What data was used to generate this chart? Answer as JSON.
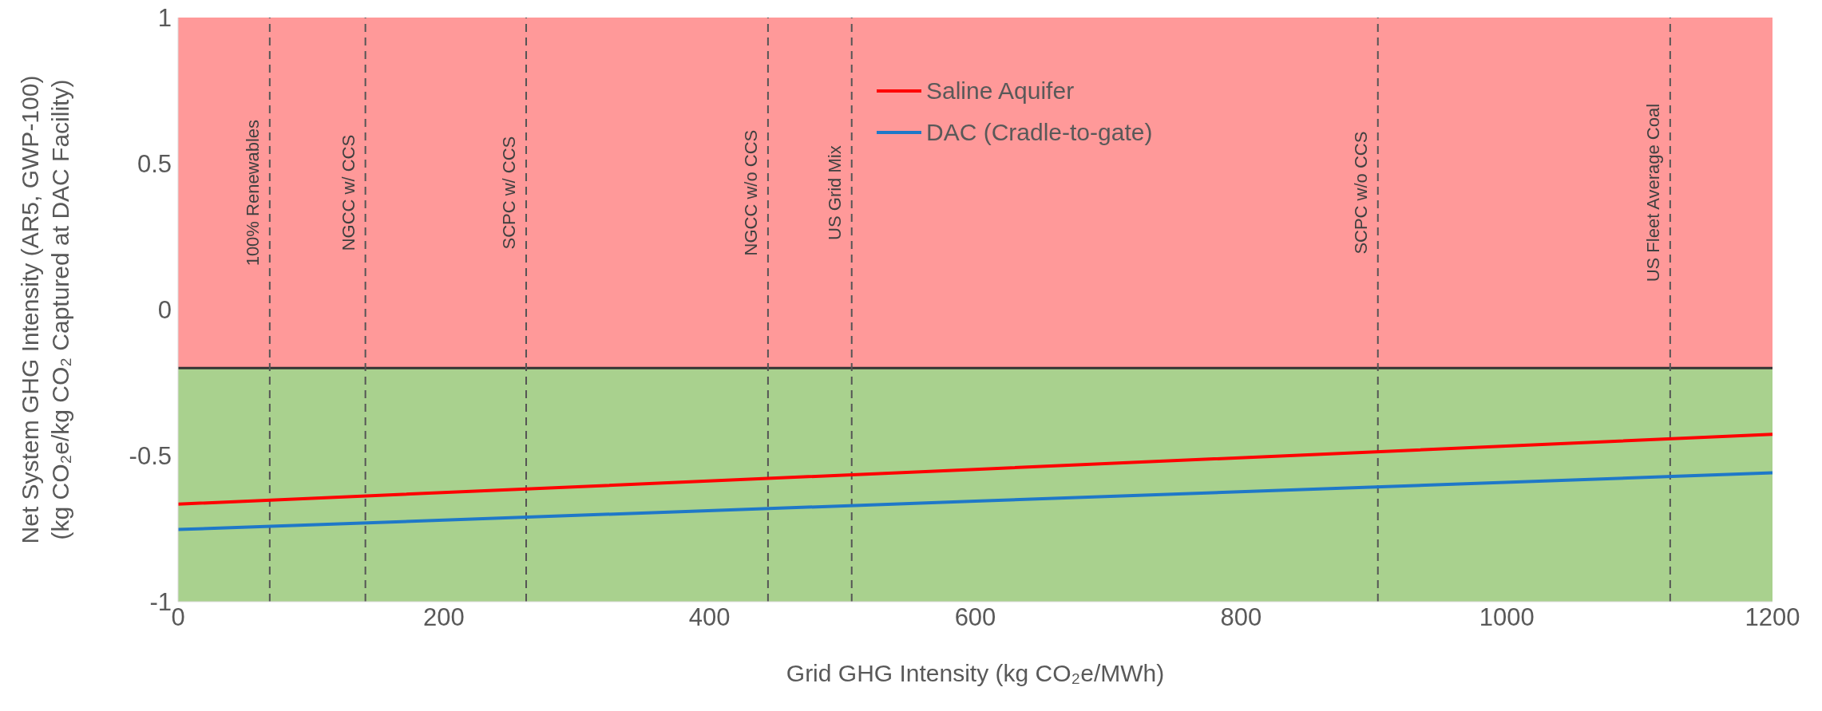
{
  "chart_data": {
    "type": "line",
    "xlabel": "Grid GHG Intensity (kg CO₂e/MWh)",
    "ylabel": "Net System GHG Intensity (AR5, GWP-100)\n(kg CO₂e/kg CO₂ Captured at DAC Facility)",
    "xlim": [
      0,
      1200
    ],
    "xticks": [
      0,
      200,
      400,
      600,
      800,
      1000,
      1200
    ],
    "ylim": [
      -1,
      1
    ],
    "yticks": [
      -1,
      -0.5,
      0,
      0.5,
      1
    ],
    "legend": "top",
    "line_style": "solid",
    "marker": "none",
    "series": [
      {
        "name": "Saline Aquifer",
        "color": "#ff0000",
        "x": [
          0,
          600,
          1200
        ],
        "values": [
          -0.666,
          -0.547,
          -0.427
        ]
      },
      {
        "name": "DAC (Cradle-to-gate)",
        "color": "#1f78c8",
        "x": [
          0,
          600,
          1200
        ],
        "values": [
          -0.753,
          -0.656,
          -0.559
        ]
      }
    ],
    "bands": [
      {
        "axis": "y",
        "from": -0.2,
        "to": 1,
        "color": "#ff9999"
      },
      {
        "axis": "y",
        "from": -1,
        "to": -0.2,
        "color": "#a9d18e"
      }
    ],
    "ref_lines": [
      {
        "axis": "y",
        "value": -0.2,
        "color": "#333333",
        "line_style": "solid"
      },
      {
        "axis": "x",
        "value": 69,
        "label": "100% Renewables",
        "color": "#555555",
        "line_style": "dashed"
      },
      {
        "axis": "x",
        "value": 141,
        "label": "NGCC w/ CCS",
        "color": "#555555",
        "line_style": "dashed"
      },
      {
        "axis": "x",
        "value": 262,
        "label": "SCPC w/ CCS",
        "color": "#555555",
        "line_style": "dashed"
      },
      {
        "axis": "x",
        "value": 444,
        "label": "NGCC w/o CCS",
        "color": "#555555",
        "line_style": "dashed"
      },
      {
        "axis": "x",
        "value": 507,
        "label": "US Grid Mix",
        "color": "#555555",
        "line_style": "dashed"
      },
      {
        "axis": "x",
        "value": 903,
        "label": "SCPC w/o CCS",
        "color": "#555555",
        "line_style": "dashed"
      },
      {
        "axis": "x",
        "value": 1123,
        "label": "US Fleet Average Coal",
        "color": "#555555",
        "line_style": "dashed"
      }
    ]
  }
}
